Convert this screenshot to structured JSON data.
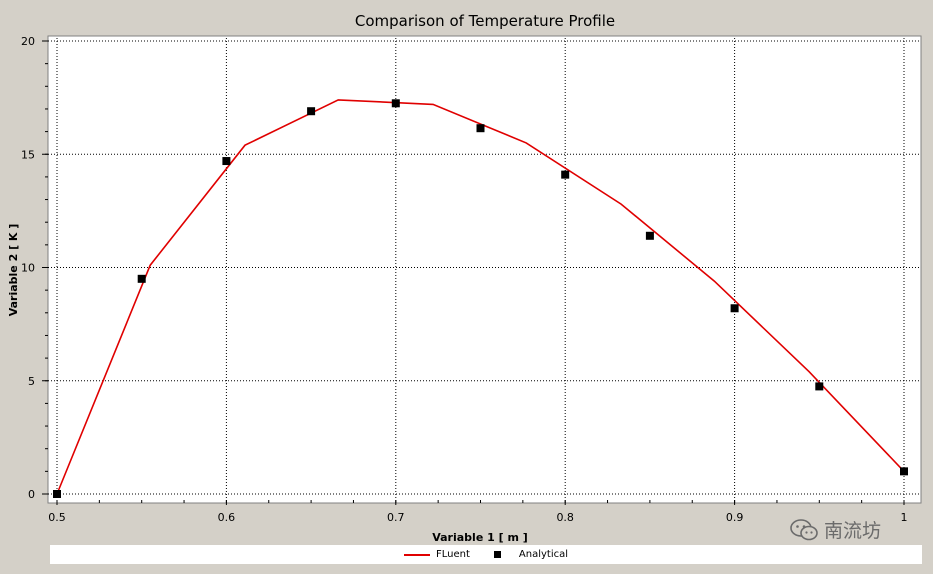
{
  "chart_data": {
    "type": "line",
    "title": "Comparison of Temperature Profile",
    "xlabel": "Variable 1 [ m ]",
    "ylabel": "Variable 2 [ K ]",
    "xlim": [
      0.5,
      1.0
    ],
    "ylim": [
      0,
      20
    ],
    "xticks": [
      0.5,
      0.6,
      0.7,
      0.8,
      0.9,
      1.0
    ],
    "xtick_labels": [
      "0.5",
      "0.6",
      "0.7",
      "0.8",
      "0.9",
      "1"
    ],
    "yticks": [
      0,
      5,
      10,
      15,
      20
    ],
    "ytick_labels": [
      "0",
      "5",
      "10",
      "15",
      "20"
    ],
    "grid": true,
    "legend_position": "bottom",
    "series": [
      {
        "name": "FLuent",
        "style": "line",
        "color": "#e00000",
        "x": [
          0.5,
          0.555,
          0.611,
          0.666,
          0.722,
          0.777,
          0.833,
          0.888,
          0.944,
          1.0
        ],
        "y": [
          0.0,
          10.1,
          15.4,
          17.4,
          17.2,
          15.5,
          12.8,
          9.4,
          5.4,
          1.0
        ]
      },
      {
        "name": "Analytical",
        "style": "markers",
        "marker": "square",
        "color": "#000000",
        "x": [
          0.5,
          0.55,
          0.6,
          0.65,
          0.7,
          0.75,
          0.8,
          0.85,
          0.9,
          0.95,
          1.0
        ],
        "y": [
          0.0,
          9.5,
          14.7,
          16.9,
          17.25,
          16.15,
          14.1,
          11.4,
          8.2,
          4.75,
          1.0
        ]
      }
    ]
  },
  "watermark": {
    "text": "南流坊",
    "icon": "wechat-icon"
  }
}
